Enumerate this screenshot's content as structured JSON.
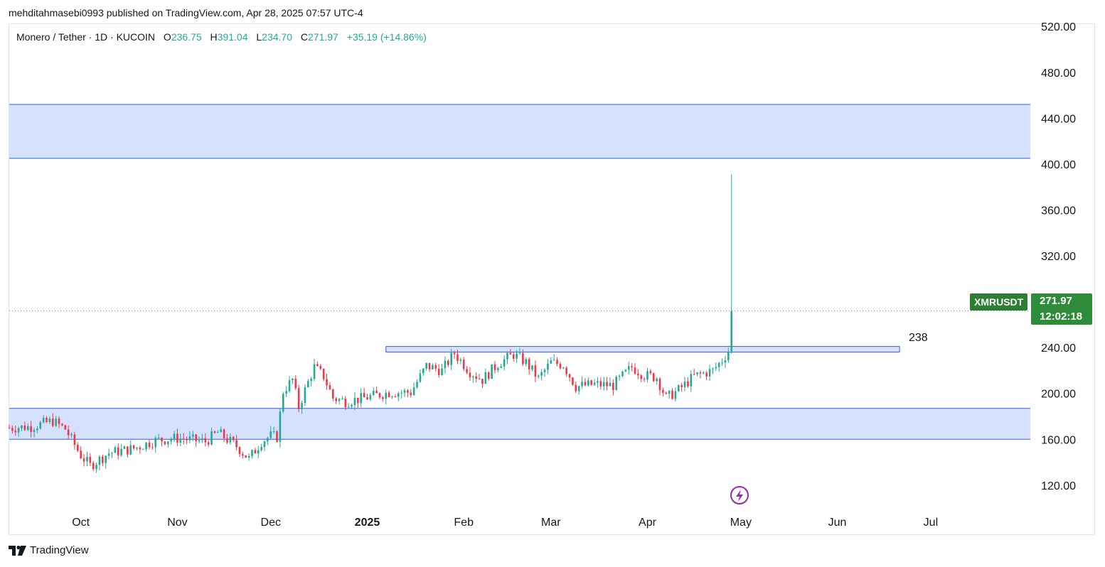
{
  "publisher_line": "mehditahmasebi0993 published on TradingView.com, Apr 28, 2025 07:57 UTC-4",
  "legend": {
    "symbol": "Monero / Tether · 1D · KUCOIN",
    "o_label": "O",
    "o_value": "236.75",
    "h_label": "H",
    "h_value": "391.04",
    "l_label": "L",
    "l_value": "234.70",
    "c_label": "C",
    "c_value": "271.97",
    "change": "+35.19 (+14.86%)"
  },
  "ticker_tag": "XMRUSDT",
  "last_price": "271.97",
  "countdown": "12:02:18",
  "level_label": "238",
  "brand": "TradingView",
  "colors": {
    "up": "#22ab94",
    "down": "#f23645",
    "zone_fill": "#d6e0ff",
    "zone_border": "#2f5cf0",
    "last_price_bg": "#2e8b3a"
  },
  "chart_data": {
    "type": "candlestick",
    "title": "",
    "xlabel": "",
    "ylabel": "",
    "ylim": [
      97,
      522
    ],
    "y_ticks": [
      "520.00",
      "480.00",
      "440.00",
      "400.00",
      "360.00",
      "320.00",
      "280.00",
      "240.00",
      "200.00",
      "160.00",
      "120.00"
    ],
    "x_ticks": [
      "Oct",
      "Nov",
      "Dec",
      "2025",
      "Feb",
      "Mar",
      "Apr",
      "May",
      "Jun",
      "Jul"
    ],
    "x_tick_dates": [
      "2024-10-01",
      "2024-11-01",
      "2024-12-01",
      "2025-01-01",
      "2025-02-01",
      "2025-03-01",
      "2025-04-01",
      "2025-05-01",
      "2025-06-01",
      "2025-07-01"
    ],
    "x_range": [
      "2024-09-08",
      "2025-08-02"
    ],
    "closes": [
      {
        "date": "2024-09-08",
        "close": 170
      },
      {
        "date": "2024-09-15",
        "close": 171
      },
      {
        "date": "2024-09-22",
        "close": 176
      },
      {
        "date": "2024-09-26",
        "close": 169
      },
      {
        "date": "2024-10-01",
        "close": 146
      },
      {
        "date": "2024-10-04",
        "close": 137
      },
      {
        "date": "2024-10-10",
        "close": 148
      },
      {
        "date": "2024-10-18",
        "close": 152
      },
      {
        "date": "2024-10-25",
        "close": 159
      },
      {
        "date": "2024-11-01",
        "close": 161
      },
      {
        "date": "2024-11-10",
        "close": 158
      },
      {
        "date": "2024-11-14",
        "close": 166
      },
      {
        "date": "2024-11-20",
        "close": 154
      },
      {
        "date": "2024-11-24",
        "close": 143
      },
      {
        "date": "2024-11-28",
        "close": 158
      },
      {
        "date": "2024-12-01",
        "close": 163
      },
      {
        "date": "2024-12-03",
        "close": 162
      },
      {
        "date": "2024-12-05",
        "close": 202
      },
      {
        "date": "2024-12-08",
        "close": 212
      },
      {
        "date": "2024-12-10",
        "close": 188
      },
      {
        "date": "2024-12-12",
        "close": 203
      },
      {
        "date": "2024-12-15",
        "close": 223
      },
      {
        "date": "2024-12-18",
        "close": 215
      },
      {
        "date": "2024-12-21",
        "close": 196
      },
      {
        "date": "2024-12-25",
        "close": 193
      },
      {
        "date": "2024-12-31",
        "close": 196
      },
      {
        "date": "2025-01-08",
        "close": 201
      },
      {
        "date": "2025-01-15",
        "close": 201
      },
      {
        "date": "2025-01-20",
        "close": 224
      },
      {
        "date": "2025-01-25",
        "close": 220
      },
      {
        "date": "2025-01-29",
        "close": 235
      },
      {
        "date": "2025-02-03",
        "close": 219
      },
      {
        "date": "2025-02-07",
        "close": 212
      },
      {
        "date": "2025-02-12",
        "close": 226
      },
      {
        "date": "2025-02-17",
        "close": 234
      },
      {
        "date": "2025-02-21",
        "close": 227
      },
      {
        "date": "2025-02-25",
        "close": 213
      },
      {
        "date": "2025-03-01",
        "close": 227
      },
      {
        "date": "2025-03-05",
        "close": 225
      },
      {
        "date": "2025-03-09",
        "close": 206
      },
      {
        "date": "2025-03-15",
        "close": 208
      },
      {
        "date": "2025-03-21",
        "close": 207
      },
      {
        "date": "2025-03-27",
        "close": 223
      },
      {
        "date": "2025-03-31",
        "close": 216
      },
      {
        "date": "2025-04-04",
        "close": 214
      },
      {
        "date": "2025-04-07",
        "close": 196
      },
      {
        "date": "2025-04-11",
        "close": 203
      },
      {
        "date": "2025-04-16",
        "close": 215
      },
      {
        "date": "2025-04-22",
        "close": 220
      },
      {
        "date": "2025-04-25",
        "close": 229
      },
      {
        "date": "2025-04-27",
        "close": 236.75
      },
      {
        "date": "2025-04-28",
        "open": 236.75,
        "high": 391.04,
        "low": 234.7,
        "close": 271.97
      }
    ],
    "zones": [
      {
        "from": 405,
        "to": 452,
        "start": "2024-09-08",
        "end": "right-edge"
      },
      {
        "from": 160,
        "to": 187,
        "start": "2024-09-08",
        "end": "right-edge"
      },
      {
        "from": 236,
        "to": 241,
        "start": "2025-01-07",
        "end": "2025-06-21",
        "label": "238"
      }
    ],
    "last_price_line": 271.97,
    "grid": false,
    "legend_position": "top-left"
  }
}
